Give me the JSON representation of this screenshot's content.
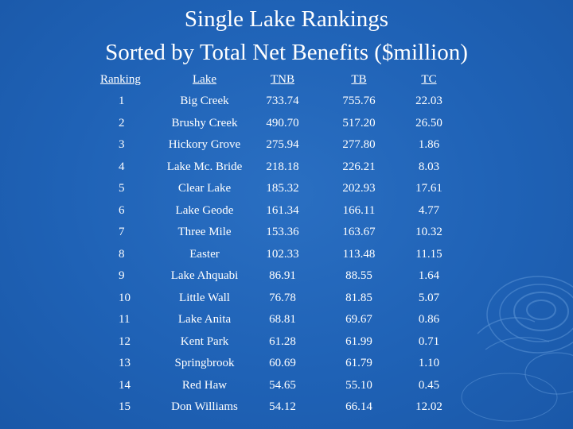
{
  "title": {
    "line1": "Single Lake Rankings",
    "line2": "Sorted by Total Net Benefits ($million)"
  },
  "table": {
    "headers": {
      "ranking": "Ranking",
      "lake": "Lake",
      "tnb": "TNB",
      "tb": "TB",
      "tc": "TC"
    },
    "rows": [
      {
        "rank": "1",
        "lake": "Big Creek",
        "tnb": "733.74",
        "tb": "755.76",
        "tc": "22.03"
      },
      {
        "rank": "2",
        "lake": "Brushy Creek",
        "tnb": "490.70",
        "tb": "517.20",
        "tc": "26.50"
      },
      {
        "rank": "3",
        "lake": "Hickory Grove",
        "tnb": "275.94",
        "tb": "277.80",
        "tc": "1.86"
      },
      {
        "rank": "4",
        "lake": "Lake Mc. Bride",
        "tnb": "218.18",
        "tb": "226.21",
        "tc": "8.03"
      },
      {
        "rank": "5",
        "lake": "Clear Lake",
        "tnb": "185.32",
        "tb": "202.93",
        "tc": "17.61"
      },
      {
        "rank": "6",
        "lake": "Lake Geode",
        "tnb": "161.34",
        "tb": "166.11",
        "tc": "4.77"
      },
      {
        "rank": "7",
        "lake": "Three Mile",
        "tnb": "153.36",
        "tb": "163.67",
        "tc": "10.32"
      },
      {
        "rank": "8",
        "lake": "Easter",
        "tnb": "102.33",
        "tb": "113.48",
        "tc": "11.15"
      },
      {
        "rank": "9",
        "lake": "Lake Ahquabi",
        "tnb": "86.91",
        "tb": "88.55",
        "tc": "1.64"
      },
      {
        "rank": "10",
        "lake": "Little Wall",
        "tnb": "76.78",
        "tb": "81.85",
        "tc": "5.07"
      },
      {
        "rank": "11",
        "lake": "Lake Anita",
        "tnb": "68.81",
        "tb": "69.67",
        "tc": "0.86"
      },
      {
        "rank": "12",
        "lake": "Kent Park",
        "tnb": "61.28",
        "tb": "61.99",
        "tc": "0.71"
      },
      {
        "rank": "13",
        "lake": "Springbrook",
        "tnb": "60.69",
        "tb": "61.79",
        "tc": "1.10"
      },
      {
        "rank": "14",
        "lake": "Red Haw",
        "tnb": "54.65",
        "tb": "55.10",
        "tc": "0.45"
      },
      {
        "rank": "15",
        "lake": "Don Williams",
        "tnb": "54.12",
        "tb": "66.14",
        "tc": "12.02"
      }
    ]
  },
  "theme": {
    "background": "#1f62b6",
    "text": "#ffffff",
    "ripple": "#5b93d6"
  }
}
